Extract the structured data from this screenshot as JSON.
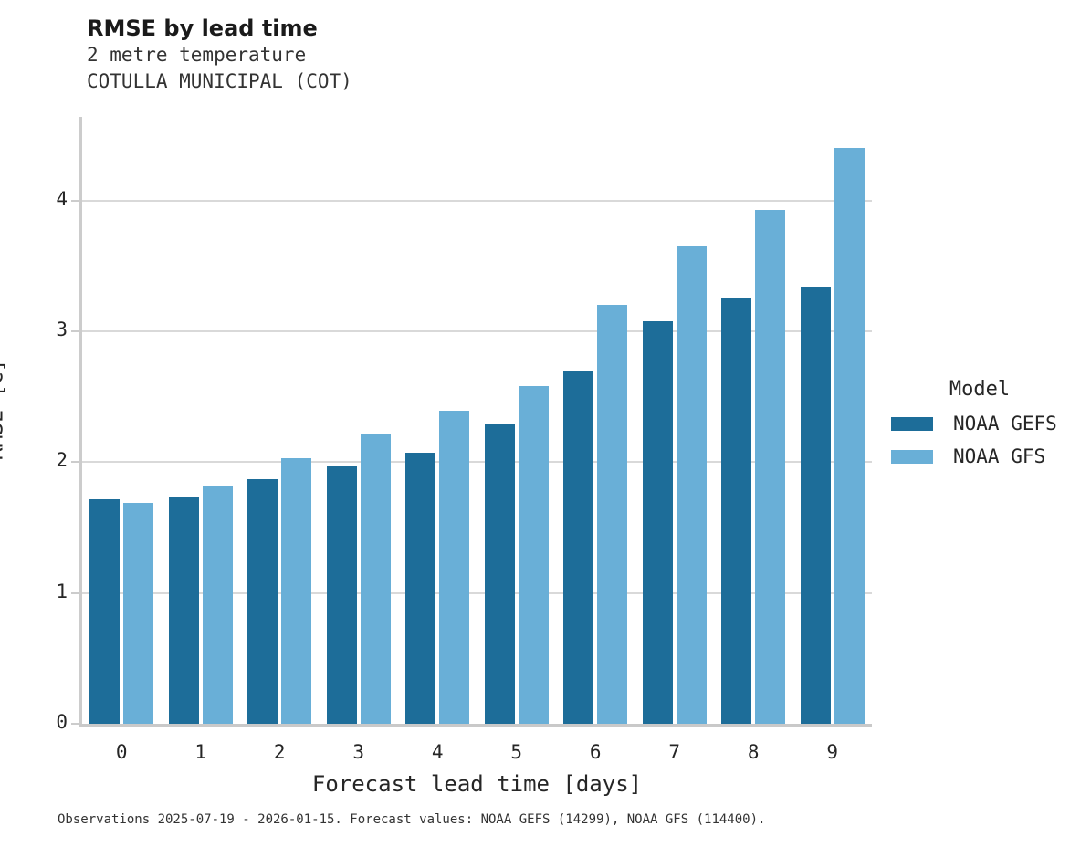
{
  "chart_data": {
    "type": "bar",
    "title": "RMSE by lead time",
    "subtitle_line1": "2 metre temperature",
    "subtitle_line2": "COTULLA MUNICIPAL (COT)",
    "xlabel": "Forecast lead time [days]",
    "ylabel": "RMSE [C]",
    "categories": [
      "0",
      "1",
      "2",
      "3",
      "4",
      "5",
      "6",
      "7",
      "8",
      "9"
    ],
    "series": [
      {
        "name": "NOAA GEFS",
        "color": "#1d6d99",
        "values": [
          1.72,
          1.73,
          1.87,
          1.97,
          2.07,
          2.29,
          2.69,
          3.08,
          3.26,
          3.34
        ]
      },
      {
        "name": "NOAA GFS",
        "color": "#69afd7",
        "values": [
          1.69,
          1.82,
          2.03,
          2.22,
          2.39,
          2.58,
          3.2,
          3.65,
          3.93,
          4.4
        ]
      }
    ],
    "ylim": [
      0,
      4.64
    ],
    "yticks": [
      "0",
      "1",
      "2",
      "3",
      "4"
    ],
    "grid": true,
    "legend": {
      "title": "Model",
      "position": "right"
    },
    "caption": "Observations 2025-07-19 - 2026-01-15. Forecast values: NOAA GEFS (14299), NOAA GFS (114400)."
  },
  "colors": {
    "grid": "#d9d9d9",
    "spine": "#cccccc",
    "text": "#262626",
    "title_text": "#1a1a1a"
  }
}
